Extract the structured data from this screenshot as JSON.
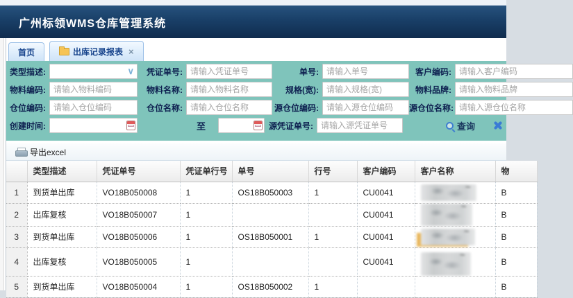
{
  "app": {
    "title": "广州标领WMS仓库管理系统"
  },
  "colors": {
    "header_navy": "#16395f",
    "form_teal": "#7fc4bb",
    "tab_blue": "#15428b",
    "accent_blue": "#3a7bd5",
    "calendar_red": "#e05a5a",
    "folder_yellow": "#f6c455"
  },
  "icons": {
    "folder": "folder-icon",
    "close": "×",
    "dropdown_chevron": "∨",
    "calendar": "calendar-icon",
    "search": "magnifier-icon",
    "clear": "clear-icon",
    "printer": "printer-icon"
  },
  "tabs": {
    "home": {
      "label": "首页"
    },
    "report": {
      "label": "出库记录报表",
      "close": "×",
      "active": true
    }
  },
  "search_form": {
    "type_label": "类型描述:",
    "voucher_label": "凭证单号:",
    "voucher_ph": "请输入凭证单号",
    "order_label": "单号:",
    "order_ph": "请输入单号",
    "customer_code_label": "客户编码:",
    "customer_code_ph": "请输入客户编码",
    "material_code_label": "物料编码:",
    "material_code_ph": "请输入物料编码",
    "material_name_label": "物料名称:",
    "material_name_ph": "请输入物料名称",
    "spec_label": "规格(宽):",
    "spec_ph": "请输入规格(宽)",
    "material_brand_label": "物料品牌:",
    "material_brand_ph": "请输入物料品牌",
    "bin_code_label": "仓位编码:",
    "bin_code_ph": "请输入仓位编码",
    "bin_name_label": "仓位名称:",
    "bin_name_ph": "请输入仓位名称",
    "src_bin_code_label": "源仓位编码:",
    "src_bin_code_ph": "请输入源仓位编码",
    "src_bin_name_label": "源仓位名称:",
    "src_bin_name_ph": "请输入源仓位名称",
    "create_time_label": "创建时间:",
    "to_label": "至",
    "src_voucher_label": "源凭证单号:",
    "src_voucher_ph": "请输入源凭证单号",
    "search_label": "查询",
    "date_from_value": "",
    "date_to_value": ""
  },
  "toolbar": {
    "export_label": "导出excel"
  },
  "table": {
    "headers": [
      "",
      "类型描述",
      "凭证单号",
      "凭证单行号",
      "单号",
      "行号",
      "客户编码",
      "客户名称",
      "物"
    ],
    "rows": [
      {
        "num": "1",
        "cells": [
          "到货单出库",
          "VO18B050008",
          "1",
          "OS18B050003",
          "1",
          "CU0041",
          "",
          "B"
        ],
        "customer_name_redacted": true
      },
      {
        "num": "2",
        "cells": [
          "出库复核",
          "VO18B050007",
          "1",
          "",
          "",
          "CU0041",
          "",
          "B"
        ],
        "customer_name_redacted": true
      },
      {
        "num": "3",
        "cells": [
          "到货单出库",
          "VO18B050006",
          "1",
          "OS18B050001",
          "1",
          "CU0041",
          "",
          "B"
        ],
        "customer_name_redacted": true
      },
      {
        "num": "4",
        "cells": [
          "出库复核",
          "VO18B050005",
          "1",
          "",
          "",
          "CU0041",
          "",
          "B"
        ],
        "customer_name_redacted": true
      },
      {
        "num": "5",
        "cells": [
          "到货单出库",
          "VO18B050004",
          "1",
          "OS18B050002",
          "1",
          "",
          "",
          "B"
        ],
        "customer_name_redacted": false
      }
    ]
  }
}
